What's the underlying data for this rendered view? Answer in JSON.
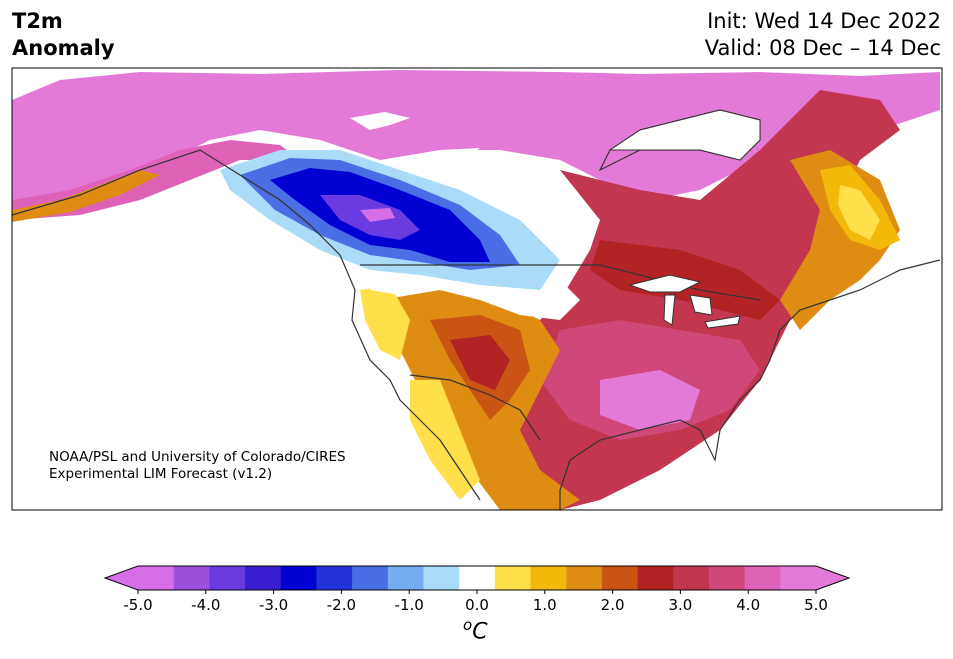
{
  "header": {
    "title_line1": "T2m",
    "title_line2": "Anomaly",
    "init_text": "Init: Wed 14 Dec 2022",
    "valid_text": "Valid: 08 Dec – 14 Dec"
  },
  "credit": {
    "line1": "NOAA/PSL and University of Colorado/CIRES",
    "line2": "Experimental LIM Forecast (v1.2)"
  },
  "colorbar": {
    "units_base": "C",
    "units_sup": "o",
    "tick_labels": [
      "-5.0",
      "-4.0",
      "-3.0",
      "-2.0",
      "-1.0",
      "0.0",
      "1.0",
      "2.0",
      "3.0",
      "4.0",
      "5.0"
    ],
    "levels": [
      -5,
      -4.5,
      -4,
      -3.5,
      -3,
      -2.5,
      -2,
      -1.5,
      -1,
      -0.5,
      0.5,
      1,
      1.5,
      2,
      2.5,
      3,
      3.5,
      4,
      4.5,
      5
    ],
    "colors": [
      "#d66ee8",
      "#9a52de",
      "#6a3be0",
      "#3a1fd2",
      "#0000d2",
      "#2233d8",
      "#4a6ee6",
      "#74aef0",
      "#aadcfa",
      "#ffffff",
      "#ffe04a",
      "#f2b80a",
      "#df8d12",
      "#c95414",
      "#b42324",
      "#c33650",
      "#d0487a",
      "#de62b8",
      "#e47ad8"
    ]
  },
  "map_regions": {
    "alaska_canada_north": "#e47ad8",
    "northwest_cold_core": "#0000d2",
    "us_east_warm": "#c33650",
    "southwest_warm": "#df8d12"
  }
}
